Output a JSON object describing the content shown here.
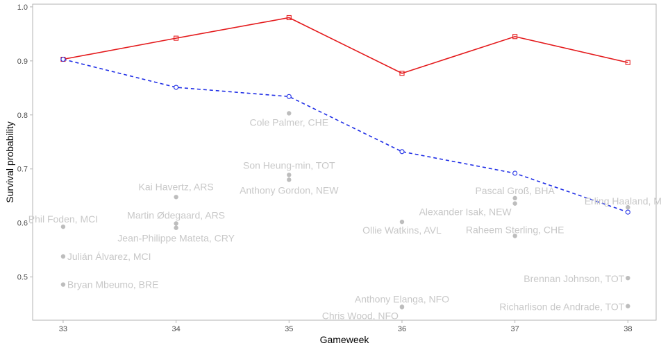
{
  "chart_data": {
    "type": "line",
    "xlabel": "Gameweek",
    "ylabel": "Survival probability",
    "xlim": [
      32.73,
      38.25
    ],
    "ylim": [
      0.42,
      1.005
    ],
    "x_ticks": [
      33,
      34,
      35,
      36,
      37,
      38
    ],
    "y_ticks": [
      0.5,
      0.6,
      0.7,
      0.8,
      0.9,
      1.0
    ],
    "y_tick_labels": [
      "0.5",
      "0.6",
      "0.7",
      "0.8",
      "0.9",
      "1.0"
    ],
    "grid": false,
    "series": [
      {
        "color": "#e41a1c",
        "line_style": "solid",
        "marker": "square",
        "x": [
          33,
          34,
          35,
          36,
          37,
          38
        ],
        "values": [
          0.903,
          0.942,
          0.98,
          0.877,
          0.945,
          0.897
        ]
      },
      {
        "color": "#1f2ee6",
        "line_style": "dashed",
        "marker": "circle",
        "x": [
          33,
          34,
          35,
          36,
          37,
          38
        ],
        "values": [
          0.903,
          0.851,
          0.834,
          0.732,
          0.692,
          0.62
        ]
      }
    ],
    "points": [
      {
        "x": 33,
        "y": 0.593,
        "label": "Phil Foden, MCI",
        "anchor": "middle",
        "dy": -6
      },
      {
        "x": 33,
        "y": 0.538,
        "label": "Julián Álvarez, MCI",
        "anchor": "start",
        "dy": 5
      },
      {
        "x": 33,
        "y": 0.486,
        "label": "Bryan Mbeumo, BRE",
        "anchor": "start",
        "dy": 5
      },
      {
        "x": 34,
        "y": 0.648,
        "label": "Kai Havertz, ARS",
        "anchor": "middle",
        "dy": -10
      },
      {
        "x": 34,
        "y": 0.599,
        "label": "Martin Ødegaard, ARS",
        "anchor": "middle",
        "dy": -7
      },
      {
        "x": 34,
        "y": 0.591,
        "label": "Jean-Philippe Mateta, CRY",
        "anchor": "middle",
        "dy": 20
      },
      {
        "x": 35,
        "y": 0.803,
        "label": "Cole Palmer, CHE",
        "anchor": "middle",
        "dy": 18
      },
      {
        "x": 35,
        "y": 0.689,
        "label": "Son Heung-min, TOT",
        "anchor": "middle",
        "dy": -9
      },
      {
        "x": 35,
        "y": 0.68,
        "label": "Anthony Gordon, NEW",
        "anchor": "middle",
        "dy": 20
      },
      {
        "x": 36,
        "y": 0.602,
        "label": "Ollie Watkins, AVL",
        "anchor": "middle",
        "dy": 17
      },
      {
        "x": 36,
        "y": 0.445,
        "label": "Anthony Elanga, NFO",
        "anchor": "middle",
        "dy": -6
      },
      {
        "x": 36,
        "y": 0.444,
        "label": "Chris Wood, NFO",
        "anchor": "end",
        "dy": 17
      },
      {
        "x": 37,
        "y": 0.646,
        "label": "Pascal Groß, BHA",
        "anchor": "middle",
        "dy": -6
      },
      {
        "x": 37,
        "y": 0.636,
        "label": "Alexander Isak, NEW",
        "anchor": "end",
        "dy": 17
      },
      {
        "x": 37,
        "y": 0.576,
        "label": "Raheem Sterling, CHE",
        "anchor": "middle",
        "dy": -4
      },
      {
        "x": 38,
        "y": 0.629,
        "label": "Erling Haaland, MCI",
        "anchor": "middle",
        "dy": -4
      },
      {
        "x": 38,
        "y": 0.498,
        "label": "Brennan Johnson, TOT",
        "anchor": "end",
        "dy": 6
      },
      {
        "x": 38,
        "y": 0.446,
        "label": "Richarlison de Andrade, TOT",
        "anchor": "end",
        "dy": 6
      }
    ],
    "point_color": "#bdbdbd",
    "label_color": "#c8c8c8",
    "axis_color": "#b3b3b3"
  }
}
